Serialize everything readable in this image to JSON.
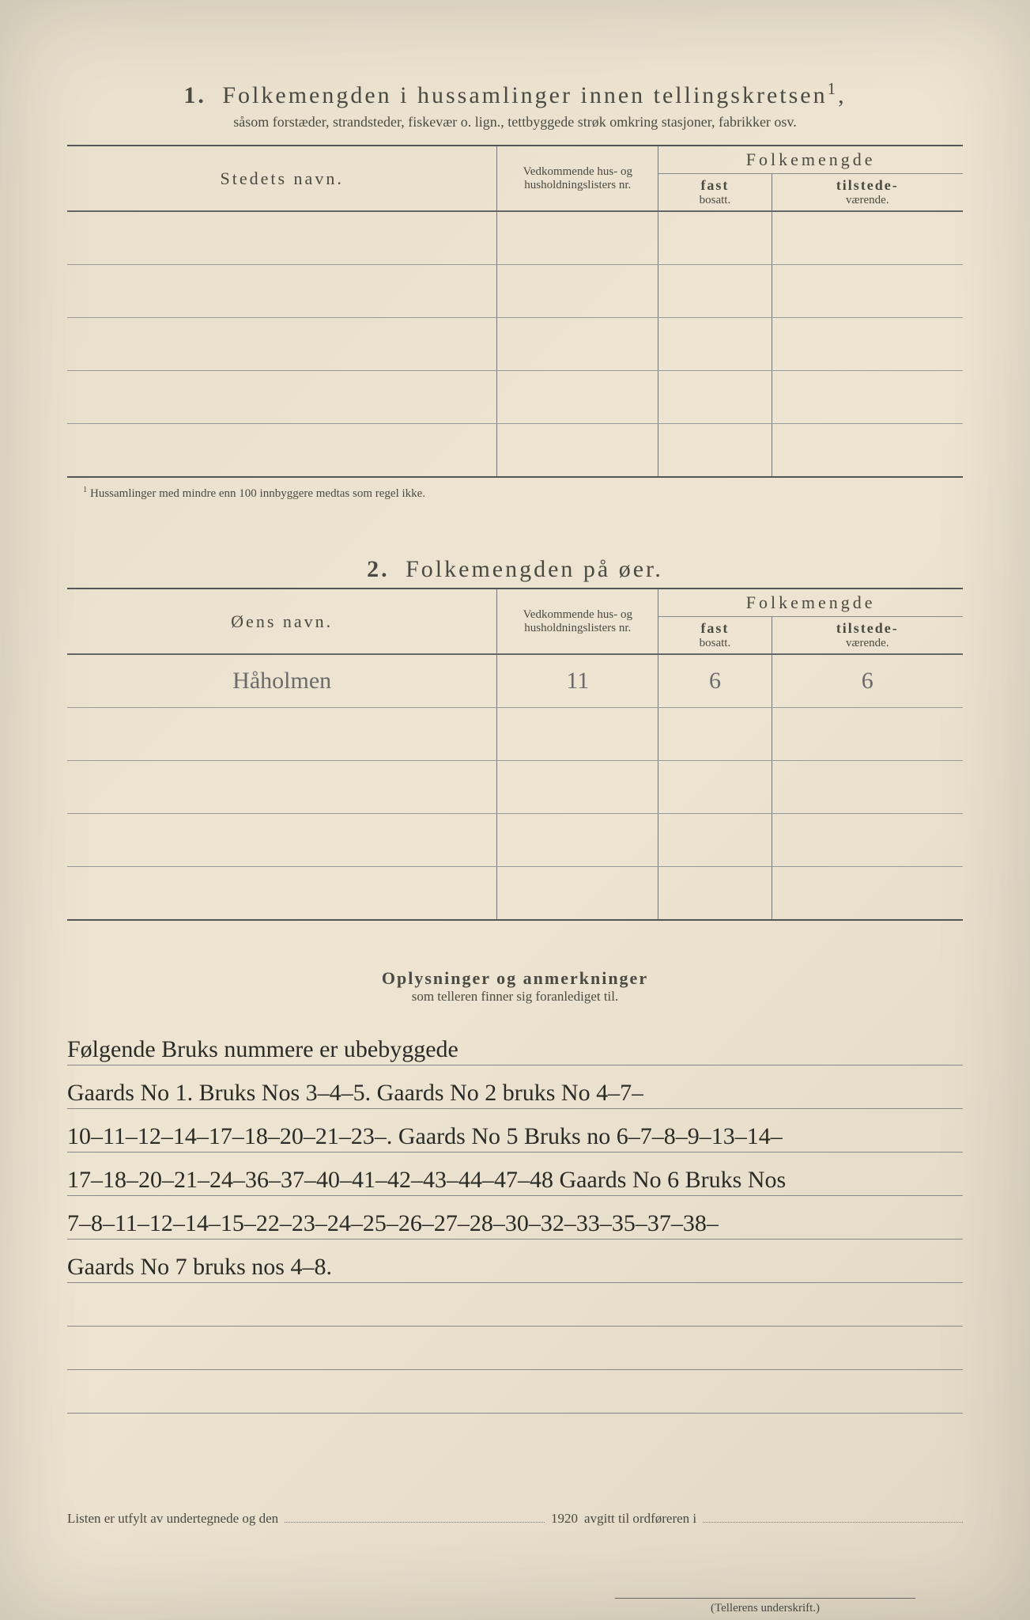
{
  "section1": {
    "number": "1.",
    "title": "Folkemengden i hussamlinger innen tellingskretsen",
    "title_sup": "1",
    "subtitle": "såsom forstæder, strandsteder, fiskevær o. lign., tettbyggede strøk omkring stasjoner, fabrikker osv.",
    "headers": {
      "name": "Stedets navn.",
      "households": "Vedkommende hus- og husholdningslisters nr.",
      "pop": "Folkemengde",
      "fast_top": "fast",
      "fast_bot": "bosatt.",
      "til_top": "tilstede-",
      "til_bot": "værende."
    },
    "rows": [
      {
        "name": "",
        "hh": "",
        "fast": "",
        "til": ""
      },
      {
        "name": "",
        "hh": "",
        "fast": "",
        "til": ""
      },
      {
        "name": "",
        "hh": "",
        "fast": "",
        "til": ""
      },
      {
        "name": "",
        "hh": "",
        "fast": "",
        "til": ""
      },
      {
        "name": "",
        "hh": "",
        "fast": "",
        "til": ""
      }
    ],
    "footnote_sup": "1",
    "footnote": "Hussamlinger med mindre enn 100 innbyggere medtas som regel ikke."
  },
  "section2": {
    "number": "2.",
    "title": "Folkemengden på øer.",
    "headers": {
      "name": "Øens navn.",
      "households": "Vedkommende hus- og husholdningslisters nr.",
      "pop": "Folkemengde",
      "fast_top": "fast",
      "fast_bot": "bosatt.",
      "til_top": "tilstede-",
      "til_bot": "værende."
    },
    "rows": [
      {
        "name": "Håholmen",
        "hh": "11",
        "fast": "6",
        "til": "6"
      },
      {
        "name": "",
        "hh": "",
        "fast": "",
        "til": ""
      },
      {
        "name": "",
        "hh": "",
        "fast": "",
        "til": ""
      },
      {
        "name": "",
        "hh": "",
        "fast": "",
        "til": ""
      },
      {
        "name": "",
        "hh": "",
        "fast": "",
        "til": ""
      }
    ]
  },
  "notes": {
    "title": "Oplysninger og anmerkninger",
    "subtitle": "som telleren finner sig foranlediget til.",
    "lines": [
      "Følgende Bruks nummere er ubebyggede",
      "Gaards No 1. Bruks Nos 3–4–5.  Gaards No 2 bruks No 4–7–",
      "10–11–12–14–17–18–20–21–23–.  Gaards No 5 Bruks no 6–7–8–9–13–14–",
      "17–18–20–21–24–36–37–40–41–42–43–44–47–48  Gaards No 6 Bruks Nos",
      "7–8–11–12–14–15–22–23–24–25–26–27–28–30–32–33–35–37–38–",
      "Gaards No 7 bruks nos 4–8.",
      "",
      "",
      ""
    ]
  },
  "bottom": {
    "prefix": "Listen er utfylt av undertegnede og den",
    "year": "1920",
    "suffix": "avgitt til ordføreren i"
  },
  "signature_label": "(Tellerens underskrift.)"
}
